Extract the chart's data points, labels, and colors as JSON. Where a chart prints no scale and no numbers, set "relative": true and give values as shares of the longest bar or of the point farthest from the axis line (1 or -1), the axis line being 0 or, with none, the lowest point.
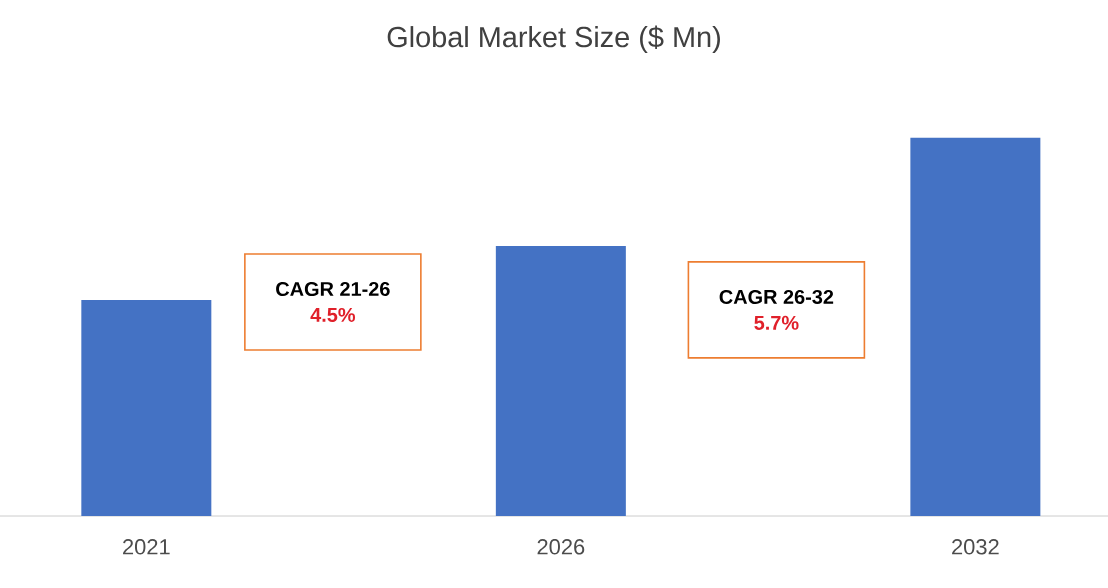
{
  "chart_data": {
    "type": "bar",
    "title": "Global Market Size ($ Mn)",
    "categories": [
      "2021",
      "2026",
      "2032"
    ],
    "values": [
      0.571,
      0.714,
      1
    ],
    "color": "#4472c4",
    "relative": true,
    "annotations": [
      "CAGR 21-26",
      "4.5%",
      "CAGR 26-32",
      "5.7%"
    ]
  }
}
